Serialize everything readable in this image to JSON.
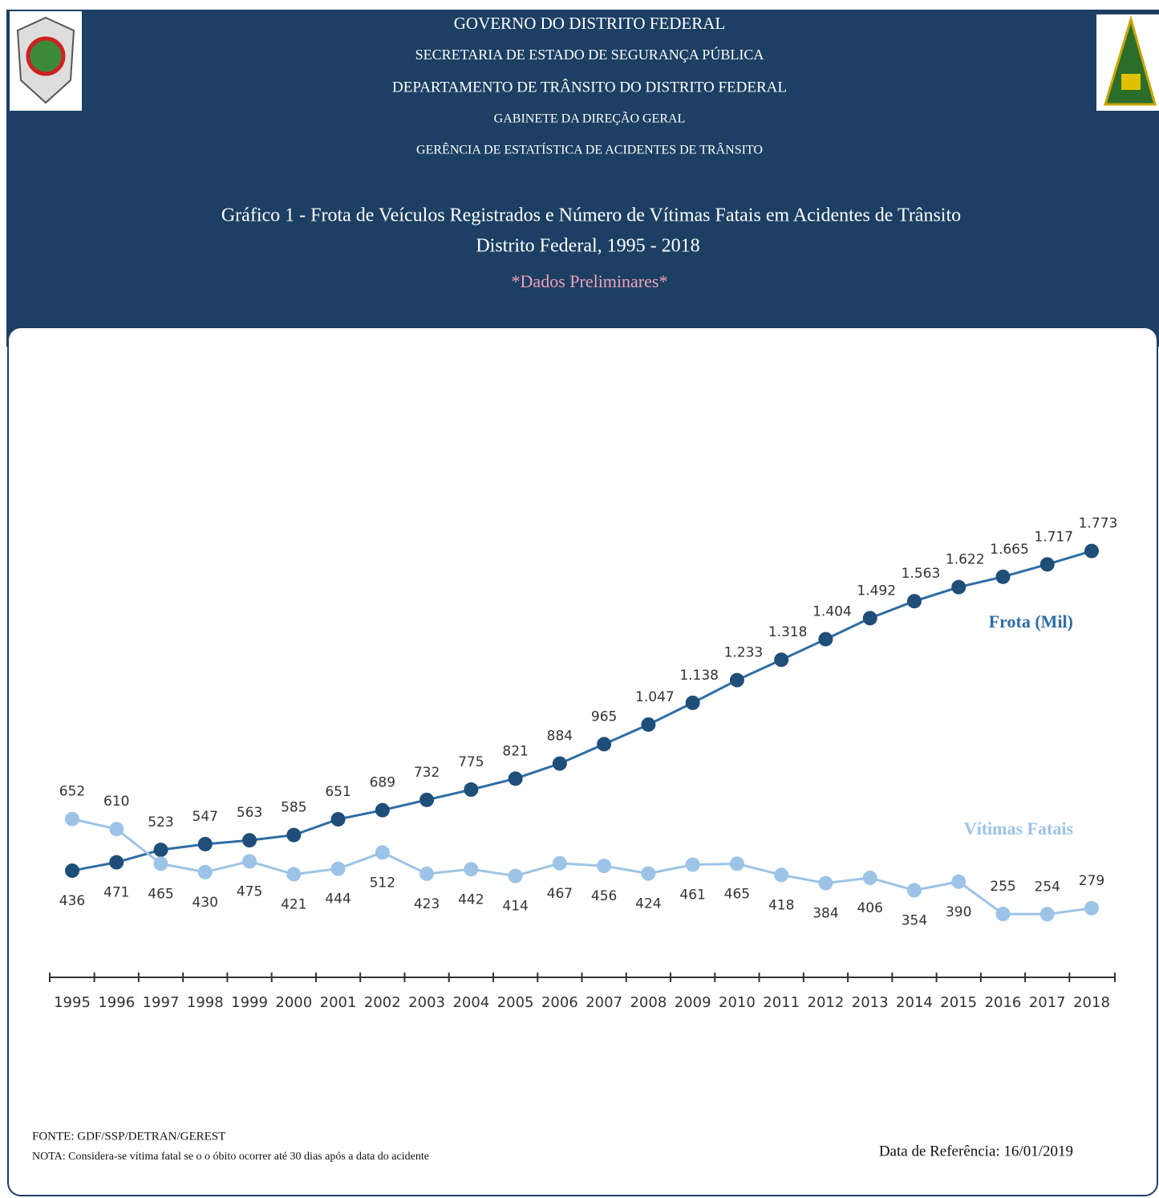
{
  "header": {
    "lines": [
      "GOVERNO DO DISTRITO FEDERAL",
      "SECRETARIA DE ESTADO DE SEGURANÇA PÚBLICA",
      "DEPARTAMENTO DE TRÂNSITO DO DISTRITO FEDERAL",
      "GABINETE DA DIREÇÃO GERAL",
      "GERÊNCIA DE ESTATÍSTICA DE ACIDENTES DE TRÂNSITO"
    ]
  },
  "chart_data": {
    "type": "line",
    "title": "Gráfico 1 - Frota de Veículos Registrados e Número de Vítimas Fatais em Acidentes de Trânsito",
    "subtitle": "Distrito Federal, 1995 - 2018",
    "annotation": "*Dados Preliminares*",
    "categories": [
      "1995",
      "1996",
      "1997",
      "1998",
      "1999",
      "2000",
      "2001",
      "2002",
      "2003",
      "2004",
      "2005",
      "2006",
      "2007",
      "2008",
      "2009",
      "2010",
      "2011",
      "2012",
      "2013",
      "2014",
      "2015",
      "2016",
      "2017",
      "2018"
    ],
    "series": [
      {
        "name": "Frota (Mil)",
        "color": "#1f4e79",
        "values": [
          436,
          471,
          523,
          547,
          563,
          585,
          651,
          689,
          732,
          775,
          821,
          884,
          965,
          1047,
          1138,
          1233,
          1318,
          1404,
          1492,
          1563,
          1622,
          1665,
          1717,
          1773
        ],
        "value_labels": [
          "436",
          "471",
          "523",
          "547",
          "563",
          "585",
          "651",
          "689",
          "732",
          "775",
          "821",
          "884",
          "965",
          "1.047",
          "1.138",
          "1.233",
          "1.318",
          "1.404",
          "1.492",
          "1.563",
          "1.622",
          "1.665",
          "1.717",
          "1.773"
        ]
      },
      {
        "name": "Vítimas Fatais",
        "color": "#9dc3e6",
        "values": [
          652,
          610,
          465,
          430,
          475,
          421,
          444,
          512,
          423,
          442,
          414,
          467,
          456,
          424,
          461,
          465,
          418,
          384,
          406,
          354,
          390,
          255,
          254,
          279
        ]
      }
    ]
  },
  "footer": {
    "source": "FONTE: GDF/SSP/DETRAN/GEREST",
    "note": "NOTA: Considera-se vítima fatal se o o óbito ocorrer até 30 dias após a data do acidente",
    "reference": "Data de Referência: 16/01/2019"
  }
}
